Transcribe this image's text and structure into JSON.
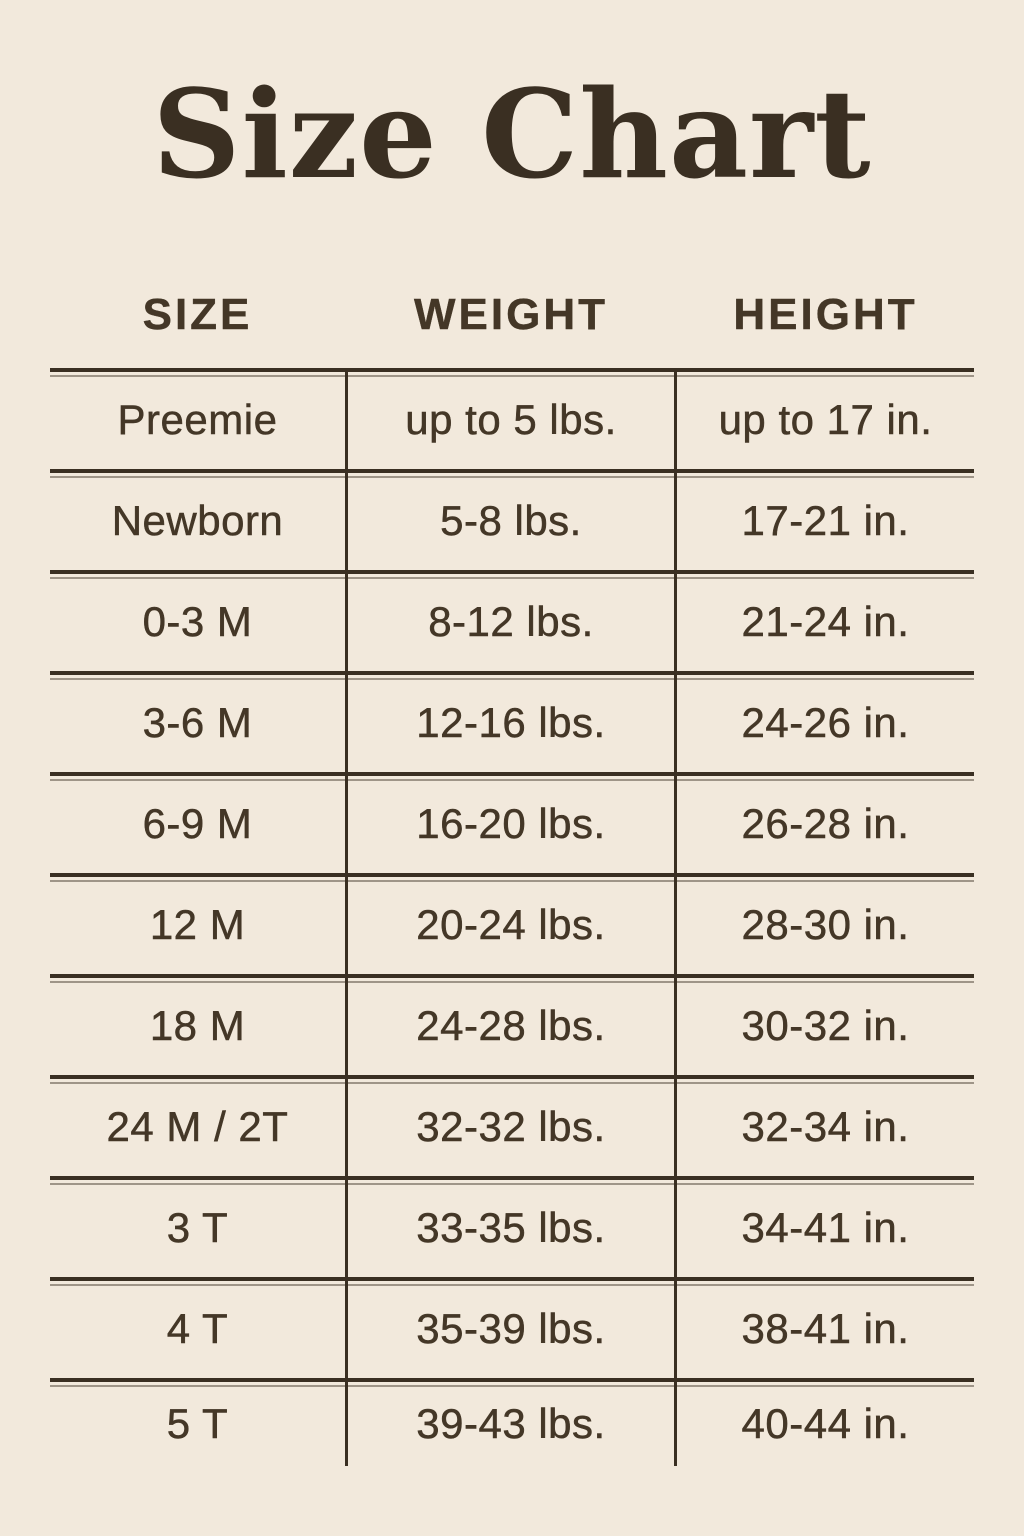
{
  "title": "Size Chart",
  "colors": {
    "background": "#f2e9dc",
    "ink": "#3a2f22",
    "text": "#443727"
  },
  "chart_data": {
    "type": "table",
    "title": "Size Chart",
    "columns": [
      "SIZE",
      "WEIGHT",
      "HEIGHT"
    ],
    "rows": [
      [
        "Preemie",
        "up to 5 lbs.",
        "up to 17 in."
      ],
      [
        "Newborn",
        "5-8 lbs.",
        "17-21 in."
      ],
      [
        "0-3 M",
        "8-12 lbs.",
        "21-24 in."
      ],
      [
        "3-6 M",
        "12-16 lbs.",
        "24-26 in."
      ],
      [
        "6-9 M",
        "16-20 lbs.",
        "26-28 in."
      ],
      [
        "12 M",
        "20-24 lbs.",
        "28-30 in."
      ],
      [
        "18 M",
        "24-28 lbs.",
        "30-32 in."
      ],
      [
        "24 M / 2T",
        "32-32 lbs.",
        "32-34 in."
      ],
      [
        "3 T",
        "33-35 lbs.",
        "34-41 in."
      ],
      [
        "4 T",
        "35-39 lbs.",
        "38-41 in."
      ],
      [
        "5 T",
        "39-43 lbs.",
        "40-44 in."
      ]
    ]
  }
}
